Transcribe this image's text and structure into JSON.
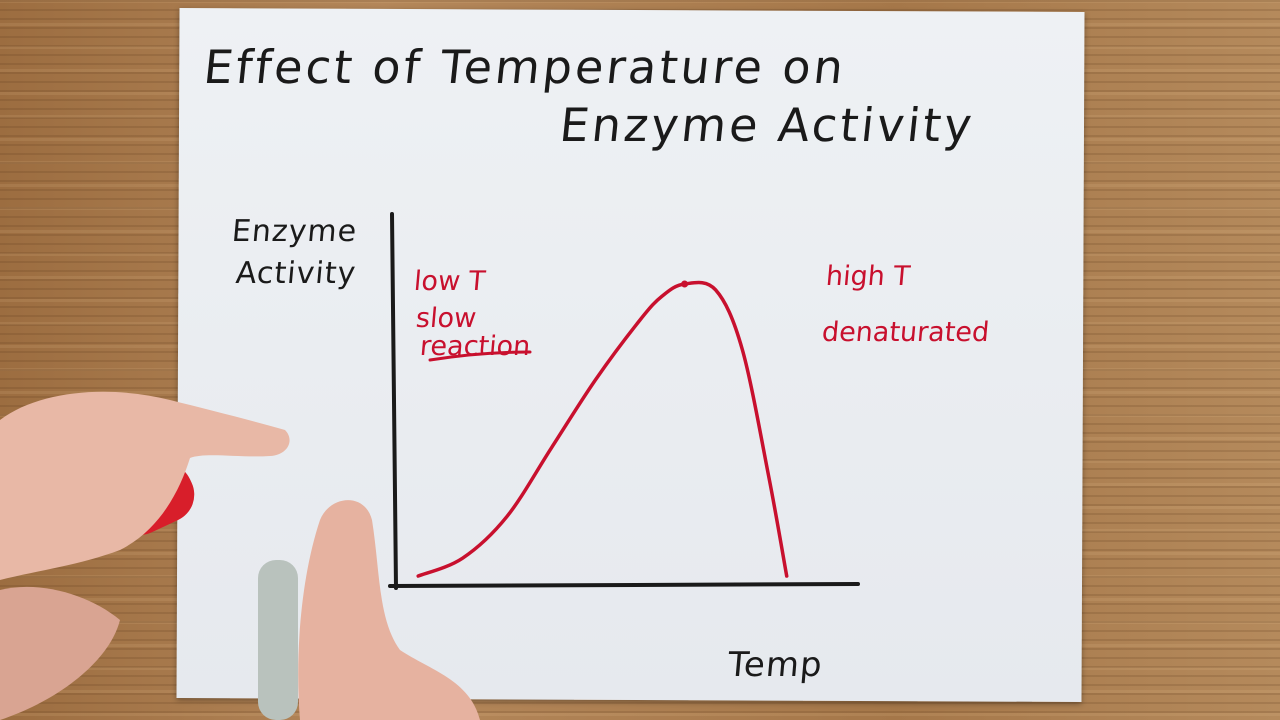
{
  "chart_data": {
    "type": "line",
    "title_line1": "Effect of Temperature on",
    "title_line2": "Enzyme Activity",
    "xlabel": "Temp",
    "ylabel_line1": "Enzyme",
    "ylabel_line2": "Activity",
    "grid": false,
    "legend": "none",
    "series_color": "#c8102e",
    "axis_color": "#1a1a1a",
    "xlim": [
      0,
      100
    ],
    "ylim": [
      0,
      100
    ],
    "series": [
      {
        "x": [
          5,
          15,
          25,
          35,
          45,
          55,
          60,
          65,
          72,
          78,
          84,
          88
        ],
        "y": [
          2,
          8,
          22,
          45,
          68,
          88,
          96,
          100,
          98,
          78,
          35,
          2
        ]
      }
    ],
    "peak": {
      "x": 65,
      "y": 100
    },
    "annotations": {
      "low_line1": "low T",
      "low_line2": "slow",
      "low_line3": "reaction",
      "high_line1": "high T",
      "high_line2": "denaturated"
    }
  }
}
